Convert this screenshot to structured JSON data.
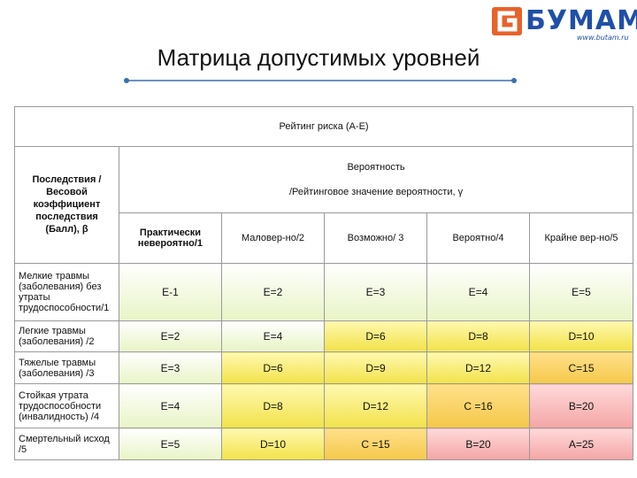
{
  "logo": {
    "word": "БУМАМ",
    "url": "www.butam.ru",
    "mark_color": "#e8622a",
    "text_color": "#1f4fa8"
  },
  "title": "Матрица допустимых уровней",
  "table": {
    "rating_title": "Рейтинг риска (А-Е)",
    "consequence_header": "Последствия / Весовой коэффициент последствия (Балл), β",
    "probability_header_line1": "Вероятность",
    "probability_header_line2": "/Рейтинговое значение вероятности, γ",
    "columns": [
      {
        "label": "Практически невероятно/1"
      },
      {
        "label": "Маловер-но/2"
      },
      {
        "label": "Возможно/ 3"
      },
      {
        "label": "Вероятно/4"
      },
      {
        "label": "Крайне вер-но/5"
      }
    ],
    "rows": [
      {
        "label": "Мелкие травмы (заболевания) без утраты трудоспособности/1",
        "cells": [
          {
            "v": "Е-1",
            "level": "low"
          },
          {
            "v": "Е=2",
            "level": "low"
          },
          {
            "v": "Е=3",
            "level": "low"
          },
          {
            "v": "Е=4",
            "level": "low"
          },
          {
            "v": "Е=5",
            "level": "low"
          }
        ]
      },
      {
        "label": "Легкие травмы (заболевания) /2",
        "cells": [
          {
            "v": "Е=2",
            "level": "low"
          },
          {
            "v": "Е=4",
            "level": "low"
          },
          {
            "v": "D=6",
            "level": "med"
          },
          {
            "v": "D=8",
            "level": "med"
          },
          {
            "v": "D=10",
            "level": "med"
          }
        ]
      },
      {
        "label": "Тяжелые травмы (заболевания) /3",
        "cells": [
          {
            "v": "Е=3",
            "level": "low"
          },
          {
            "v": "D=6",
            "level": "med"
          },
          {
            "v": "D=9",
            "level": "med"
          },
          {
            "v": "D=12",
            "level": "med"
          },
          {
            "v": "С=15",
            "level": "high"
          }
        ]
      },
      {
        "label": "Стойкая утрата трудоспособности (инвалидность) /4",
        "cells": [
          {
            "v": "Е=4",
            "level": "low"
          },
          {
            "v": "D=8",
            "level": "med"
          },
          {
            "v": "D=12",
            "level": "med"
          },
          {
            "v": "С =16",
            "level": "high"
          },
          {
            "v": "В=20",
            "level": "crit"
          }
        ]
      },
      {
        "label": "Смертельный исход /5",
        "cells": [
          {
            "v": "Е=5",
            "level": "low"
          },
          {
            "v": "D=10",
            "level": "med"
          },
          {
            "v": "С =15",
            "level": "high"
          },
          {
            "v": "В=20",
            "level": "crit"
          },
          {
            "v": "А=25",
            "level": "crit"
          }
        ]
      }
    ]
  }
}
